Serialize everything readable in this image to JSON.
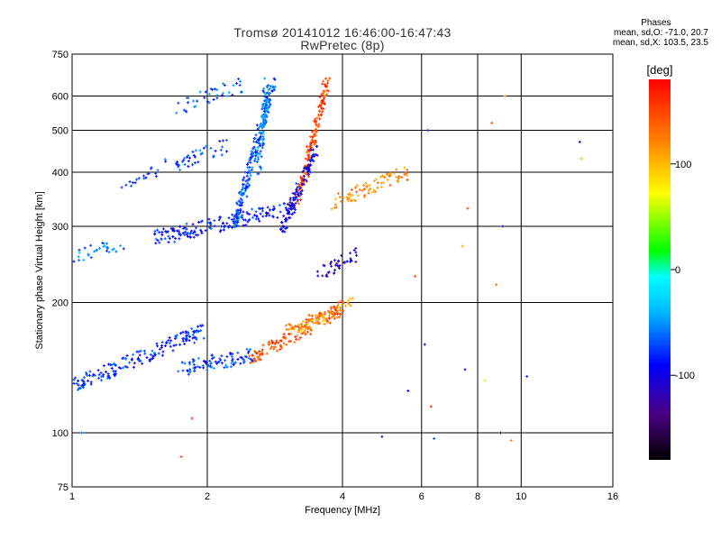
{
  "title": {
    "line1": "Tromsø 20141012 16:46:00-16:47:43",
    "line2": "RwPretec (8p)"
  },
  "stats": {
    "heading": "Phases",
    "line_o": "mean, sd,O: -71.0, 20.7",
    "line_x": "mean, sd,X: 103.5, 23.5"
  },
  "chart_data": {
    "type": "scatter",
    "xlabel": "Frequency [MHz]",
    "ylabel": "Stationary phase Virtual Height [km]",
    "xscale": "log",
    "yscale": "log",
    "xlim": [
      1,
      16
    ],
    "ylim": [
      75,
      750
    ],
    "x_ticks": [
      1,
      2,
      4,
      6,
      8,
      10,
      16
    ],
    "y_ticks": [
      75,
      100,
      200,
      300,
      400,
      500,
      600,
      750
    ],
    "x_gridlines": [
      2,
      4,
      6,
      8,
      10
    ],
    "y_gridlines": [
      100,
      200,
      300,
      400,
      500,
      600
    ],
    "grid": true,
    "colorbar": {
      "label": "[deg]",
      "range": [
        -180,
        180
      ],
      "ticks": [
        100,
        0,
        -100
      ]
    },
    "traces": [
      {
        "name": "",
        "f_start": 1.0,
        "f_end": 1.95,
        "h_start": 128,
        "h_end": 172,
        "phase": -80,
        "n": 170
      },
      {
        "name": "",
        "f_start": 1.7,
        "f_end": 2.55,
        "h_start": 140,
        "h_end": 152,
        "phase": -75,
        "n": 90
      },
      {
        "name": "",
        "f_start": 2.5,
        "f_end": 4.0,
        "h_start": 148,
        "h_end": 195,
        "phase": 140,
        "n": 150
      },
      {
        "name": "",
        "f_start": 3.0,
        "f_end": 4.2,
        "h_start": 170,
        "h_end": 200,
        "phase": 110,
        "n": 70
      },
      {
        "name": "",
        "f_start": 1.5,
        "f_end": 3.0,
        "h_start": 280,
        "h_end": 330,
        "phase": -85,
        "n": 160
      },
      {
        "name": "",
        "f_start": 1.0,
        "f_end": 1.3,
        "h_start": 258,
        "h_end": 270,
        "phase": -60,
        "n": 30
      },
      {
        "name": "",
        "f_start": 2.3,
        "f_end": 2.8,
        "h_start": 300,
        "h_end": 640,
        "phase": -70,
        "n": 200
      },
      {
        "name": "",
        "f_start": 2.6,
        "f_end": 2.72,
        "h_start": 400,
        "h_end": 650,
        "phase": -55,
        "n": 80
      },
      {
        "name": "",
        "f_start": 3.2,
        "f_end": 3.7,
        "h_start": 350,
        "h_end": 650,
        "phase": 150,
        "n": 150
      },
      {
        "name": "",
        "f_start": 2.9,
        "f_end": 3.5,
        "h_start": 290,
        "h_end": 450,
        "phase": -100,
        "n": 120
      },
      {
        "name": "",
        "f_start": 3.8,
        "f_end": 5.6,
        "h_start": 340,
        "h_end": 400,
        "phase": 120,
        "n": 80
      },
      {
        "name": "",
        "f_start": 1.3,
        "f_end": 2.2,
        "h_start": 380,
        "h_end": 460,
        "phase": -75,
        "n": 60
      },
      {
        "name": "",
        "f_start": 1.7,
        "f_end": 2.4,
        "h_start": 560,
        "h_end": 640,
        "phase": -65,
        "n": 40
      },
      {
        "name": "",
        "f_start": 3.5,
        "f_end": 4.3,
        "h_start": 230,
        "h_end": 260,
        "phase": -110,
        "n": 40
      }
    ],
    "sparse_points": [
      {
        "x": 1.75,
        "y": 88,
        "phase": 150
      },
      {
        "x": 1.85,
        "y": 108,
        "phase": 160
      },
      {
        "x": 1.05,
        "y": 100,
        "phase": -60
      },
      {
        "x": 6.3,
        "y": 115,
        "phase": 160
      },
      {
        "x": 5.6,
        "y": 125,
        "phase": -90
      },
      {
        "x": 6.1,
        "y": 160,
        "phase": -100
      },
      {
        "x": 7.5,
        "y": 140,
        "phase": -100
      },
      {
        "x": 8.3,
        "y": 132,
        "phase": 60
      },
      {
        "x": 9.0,
        "y": 100,
        "phase": -110
      },
      {
        "x": 9.5,
        "y": 96,
        "phase": 120
      },
      {
        "x": 8.8,
        "y": 220,
        "phase": 130
      },
      {
        "x": 9.1,
        "y": 300,
        "phase": -120
      },
      {
        "x": 9.2,
        "y": 600,
        "phase": 110
      },
      {
        "x": 8.6,
        "y": 520,
        "phase": 140
      },
      {
        "x": 13.5,
        "y": 470,
        "phase": -100
      },
      {
        "x": 13.6,
        "y": 430,
        "phase": 100
      },
      {
        "x": 10.3,
        "y": 135,
        "phase": -80
      },
      {
        "x": 6.2,
        "y": 500,
        "phase": -80
      },
      {
        "x": 7.6,
        "y": 330,
        "phase": 150
      },
      {
        "x": 7.4,
        "y": 270,
        "phase": 110
      },
      {
        "x": 5.8,
        "y": 230,
        "phase": 150
      },
      {
        "x": 4.9,
        "y": 98,
        "phase": -120
      },
      {
        "x": 6.4,
        "y": 97,
        "phase": -70
      }
    ]
  }
}
